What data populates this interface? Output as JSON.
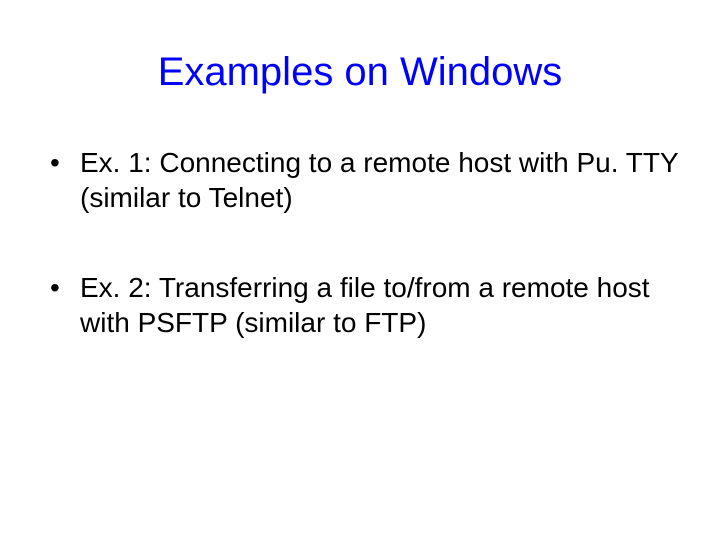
{
  "slide": {
    "title": "Examples on Windows",
    "title_color": "#0000ff",
    "title_fontsize": 40,
    "body_fontsize": 28,
    "body_color": "#000000",
    "background_color": "#ffffff",
    "bullets": [
      "Ex. 1: Connecting to a remote host with Pu. TTY (similar to Telnet)",
      "Ex. 2: Transferring a file to/from a remote host with PSFTP (similar to FTP)"
    ]
  }
}
